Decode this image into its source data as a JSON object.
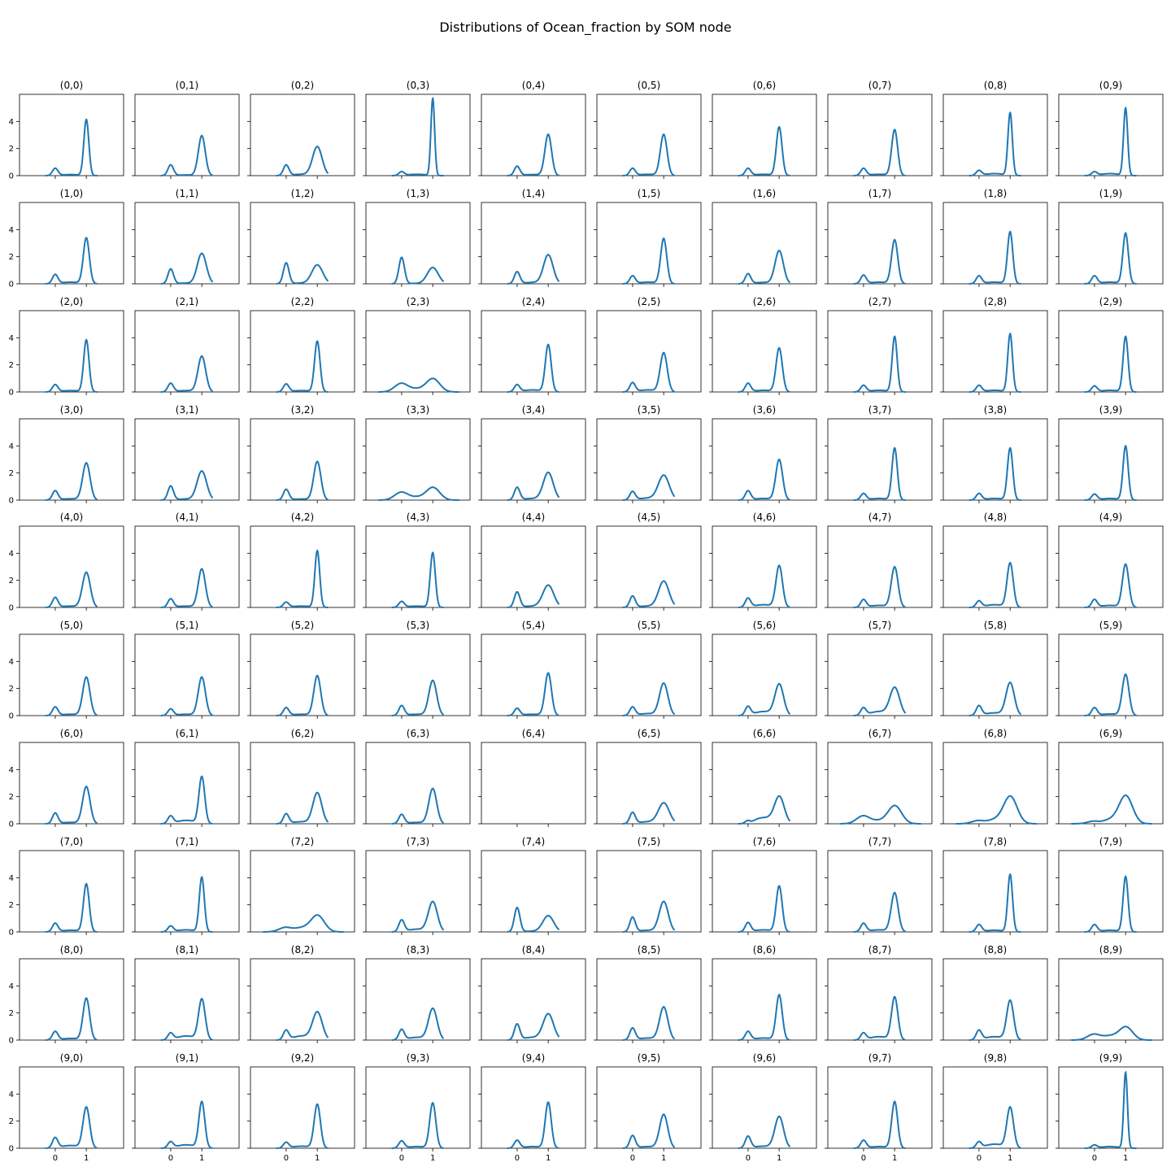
{
  "chart_data": {
    "type": "grid-of-kde-line-plots",
    "title": "Distributions of Ocean_fraction by SOM node",
    "xlabel": "",
    "ylabel": "",
    "grid_rows": 10,
    "grid_cols": 10,
    "shared_x_ticks": [
      0,
      1
    ],
    "shared_y_ticks": [
      0,
      2,
      4
    ],
    "xlim": [
      -1.15,
      2.2
    ],
    "ylim": [
      0,
      6.0
    ],
    "line_color": "#1f77b4",
    "grid": false,
    "panels": [
      {
        "label": "(0,0)",
        "peak0": 0.55,
        "peak1": 4.15,
        "hump": 0.08
      },
      {
        "label": "(0,1)",
        "peak0": 0.8,
        "peak1": 2.95,
        "hump": 0.05
      },
      {
        "label": "(0,2)",
        "peak0": 0.8,
        "peak1": 2.15,
        "hump": 0.1
      },
      {
        "label": "(0,3)",
        "peak0": 0.3,
        "peak1": 5.7,
        "hump": 0.1
      },
      {
        "label": "(0,4)",
        "peak0": 0.7,
        "peak1": 3.05,
        "hump": 0.08
      },
      {
        "label": "(0,5)",
        "peak0": 0.55,
        "peak1": 3.05,
        "hump": 0.1
      },
      {
        "label": "(0,6)",
        "peak0": 0.55,
        "peak1": 3.6,
        "hump": 0.1
      },
      {
        "label": "(0,7)",
        "peak0": 0.55,
        "peak1": 3.4,
        "hump": 0.1
      },
      {
        "label": "(0,8)",
        "peak0": 0.4,
        "peak1": 4.65,
        "hump": 0.15
      },
      {
        "label": "(0,9)",
        "peak0": 0.3,
        "peak1": 5.0,
        "hump": 0.15
      },
      {
        "label": "(1,0)",
        "peak0": 0.7,
        "peak1": 3.4,
        "hump": 0.12
      },
      {
        "label": "(1,1)",
        "peak0": 1.1,
        "peak1": 2.25,
        "hump": 0.05
      },
      {
        "label": "(1,2)",
        "peak0": 1.55,
        "peak1": 1.4,
        "hump": 0.05
      },
      {
        "label": "(1,3)",
        "peak0": 1.95,
        "peak1": 1.2,
        "hump": 0.03
      },
      {
        "label": "(1,4)",
        "peak0": 0.9,
        "peak1": 2.15,
        "hump": 0.1
      },
      {
        "label": "(1,5)",
        "peak0": 0.6,
        "peak1": 3.35,
        "hump": 0.12
      },
      {
        "label": "(1,6)",
        "peak0": 0.75,
        "peak1": 2.45,
        "hump": 0.1
      },
      {
        "label": "(1,7)",
        "peak0": 0.65,
        "peak1": 3.25,
        "hump": 0.12
      },
      {
        "label": "(1,8)",
        "peak0": 0.6,
        "peak1": 3.85,
        "hump": 0.12
      },
      {
        "label": "(1,9)",
        "peak0": 0.6,
        "peak1": 3.75,
        "hump": 0.12
      },
      {
        "label": "(2,0)",
        "peak0": 0.55,
        "peak1": 3.85,
        "hump": 0.1
      },
      {
        "label": "(2,1)",
        "peak0": 0.65,
        "peak1": 2.65,
        "hump": 0.1
      },
      {
        "label": "(2,2)",
        "peak0": 0.6,
        "peak1": 3.75,
        "hump": 0.1
      },
      {
        "label": "(2,3)",
        "peak0": 0.65,
        "peak1": 1.0,
        "hump": 0.2,
        "wide": true
      },
      {
        "label": "(2,4)",
        "peak0": 0.55,
        "peak1": 3.5,
        "hump": 0.15
      },
      {
        "label": "(2,5)",
        "peak0": 0.7,
        "peak1": 2.9,
        "hump": 0.15
      },
      {
        "label": "(2,6)",
        "peak0": 0.65,
        "peak1": 3.25,
        "hump": 0.12
      },
      {
        "label": "(2,7)",
        "peak0": 0.5,
        "peak1": 4.1,
        "hump": 0.12
      },
      {
        "label": "(2,8)",
        "peak0": 0.5,
        "peak1": 4.3,
        "hump": 0.12
      },
      {
        "label": "(2,9)",
        "peak0": 0.45,
        "peak1": 4.1,
        "hump": 0.12
      },
      {
        "label": "(3,0)",
        "peak0": 0.7,
        "peak1": 2.75,
        "hump": 0.1
      },
      {
        "label": "(3,1)",
        "peak0": 1.05,
        "peak1": 2.15,
        "hump": 0.08
      },
      {
        "label": "(3,2)",
        "peak0": 0.8,
        "peak1": 2.85,
        "hump": 0.08
      },
      {
        "label": "(3,3)",
        "peak0": 0.6,
        "peak1": 0.95,
        "hump": 0.2,
        "wide": true
      },
      {
        "label": "(3,4)",
        "peak0": 0.95,
        "peak1": 2.05,
        "hump": 0.12
      },
      {
        "label": "(3,5)",
        "peak0": 0.65,
        "peak1": 1.85,
        "hump": 0.15
      },
      {
        "label": "(3,6)",
        "peak0": 0.7,
        "peak1": 3.0,
        "hump": 0.12
      },
      {
        "label": "(3,7)",
        "peak0": 0.5,
        "peak1": 3.85,
        "hump": 0.12
      },
      {
        "label": "(3,8)",
        "peak0": 0.5,
        "peak1": 3.85,
        "hump": 0.12
      },
      {
        "label": "(3,9)",
        "peak0": 0.45,
        "peak1": 4.0,
        "hump": 0.12
      },
      {
        "label": "(4,0)",
        "peak0": 0.75,
        "peak1": 2.6,
        "hump": 0.1
      },
      {
        "label": "(4,1)",
        "peak0": 0.65,
        "peak1": 2.85,
        "hump": 0.1
      },
      {
        "label": "(4,2)",
        "peak0": 0.4,
        "peak1": 4.2,
        "hump": 0.1
      },
      {
        "label": "(4,3)",
        "peak0": 0.45,
        "peak1": 4.05,
        "hump": 0.1
      },
      {
        "label": "(4,4)",
        "peak0": 1.15,
        "peak1": 1.65,
        "hump": 0.1
      },
      {
        "label": "(4,5)",
        "peak0": 0.85,
        "peak1": 1.95,
        "hump": 0.1
      },
      {
        "label": "(4,6)",
        "peak0": 0.7,
        "peak1": 3.1,
        "hump": 0.2
      },
      {
        "label": "(4,7)",
        "peak0": 0.6,
        "peak1": 3.0,
        "hump": 0.15
      },
      {
        "label": "(4,8)",
        "peak0": 0.5,
        "peak1": 3.3,
        "hump": 0.2
      },
      {
        "label": "(4,9)",
        "peak0": 0.6,
        "peak1": 3.2,
        "hump": 0.15
      },
      {
        "label": "(5,0)",
        "peak0": 0.65,
        "peak1": 2.85,
        "hump": 0.1
      },
      {
        "label": "(5,1)",
        "peak0": 0.5,
        "peak1": 2.85,
        "hump": 0.1
      },
      {
        "label": "(5,2)",
        "peak0": 0.6,
        "peak1": 2.95,
        "hump": 0.1
      },
      {
        "label": "(5,3)",
        "peak0": 0.75,
        "peak1": 2.6,
        "hump": 0.1
      },
      {
        "label": "(5,4)",
        "peak0": 0.55,
        "peak1": 3.15,
        "hump": 0.1
      },
      {
        "label": "(5,5)",
        "peak0": 0.65,
        "peak1": 2.4,
        "hump": 0.15
      },
      {
        "label": "(5,6)",
        "peak0": 0.7,
        "peak1": 2.35,
        "hump": 0.3
      },
      {
        "label": "(5,7)",
        "peak0": 0.6,
        "peak1": 2.1,
        "hump": 0.3
      },
      {
        "label": "(5,8)",
        "peak0": 0.75,
        "peak1": 2.45,
        "hump": 0.2
      },
      {
        "label": "(5,9)",
        "peak0": 0.6,
        "peak1": 3.05,
        "hump": 0.12
      },
      {
        "label": "(6,0)",
        "peak0": 0.8,
        "peak1": 2.75,
        "hump": 0.1
      },
      {
        "label": "(6,1)",
        "peak0": 0.6,
        "peak1": 3.5,
        "hump": 0.25
      },
      {
        "label": "(6,2)",
        "peak0": 0.75,
        "peak1": 2.3,
        "hump": 0.15
      },
      {
        "label": "(6,3)",
        "peak0": 0.7,
        "peak1": 2.6,
        "hump": 0.1
      },
      {
        "label": "(6,4)",
        "empty": true
      },
      {
        "label": "(6,5)",
        "peak0": 0.85,
        "peak1": 1.55,
        "hump": 0.15
      },
      {
        "label": "(6,6)",
        "peak0": 0.25,
        "peak1": 2.05,
        "hump": 0.45
      },
      {
        "label": "(6,7)",
        "peak0": 0.6,
        "peak1": 1.35,
        "hump": 0.2,
        "wide": true
      },
      {
        "label": "(6,8)",
        "peak0": 0.25,
        "peak1": 2.05,
        "hump": 0.3,
        "wide": true
      },
      {
        "label": "(6,9)",
        "peak0": 0.2,
        "peak1": 2.1,
        "hump": 0.3,
        "wide": true
      },
      {
        "label": "(7,0)",
        "peak0": 0.65,
        "peak1": 3.55,
        "hump": 0.12
      },
      {
        "label": "(7,1)",
        "peak0": 0.45,
        "peak1": 4.05,
        "hump": 0.15
      },
      {
        "label": "(7,2)",
        "peak0": 0.35,
        "peak1": 1.25,
        "hump": 0.3,
        "wide": true
      },
      {
        "label": "(7,3)",
        "peak0": 0.9,
        "peak1": 2.25,
        "hump": 0.2
      },
      {
        "label": "(7,4)",
        "peak0": 1.8,
        "peak1": 1.2,
        "hump": 0.05
      },
      {
        "label": "(7,5)",
        "peak0": 1.1,
        "peak1": 2.25,
        "hump": 0.12
      },
      {
        "label": "(7,6)",
        "peak0": 0.7,
        "peak1": 3.4,
        "hump": 0.15
      },
      {
        "label": "(7,7)",
        "peak0": 0.65,
        "peak1": 2.9,
        "hump": 0.15
      },
      {
        "label": "(7,8)",
        "peak0": 0.55,
        "peak1": 4.25,
        "hump": 0.12
      },
      {
        "label": "(7,9)",
        "peak0": 0.55,
        "peak1": 4.1,
        "hump": 0.12
      },
      {
        "label": "(8,0)",
        "peak0": 0.65,
        "peak1": 3.1,
        "hump": 0.12
      },
      {
        "label": "(8,1)",
        "peak0": 0.55,
        "peak1": 3.05,
        "hump": 0.3
      },
      {
        "label": "(8,2)",
        "peak0": 0.75,
        "peak1": 2.1,
        "hump": 0.3
      },
      {
        "label": "(8,3)",
        "peak0": 0.8,
        "peak1": 2.35,
        "hump": 0.2
      },
      {
        "label": "(8,4)",
        "peak0": 1.2,
        "peak1": 1.95,
        "hump": 0.2
      },
      {
        "label": "(8,5)",
        "peak0": 0.9,
        "peak1": 2.45,
        "hump": 0.15
      },
      {
        "label": "(8,6)",
        "peak0": 0.65,
        "peak1": 3.35,
        "hump": 0.15
      },
      {
        "label": "(8,7)",
        "peak0": 0.55,
        "peak1": 3.2,
        "hump": 0.25
      },
      {
        "label": "(8,8)",
        "peak0": 0.75,
        "peak1": 2.95,
        "hump": 0.25
      },
      {
        "label": "(8,9)",
        "peak0": 0.45,
        "peak1": 1.0,
        "hump": 0.3,
        "wide": true
      },
      {
        "label": "(9,0)",
        "peak0": 0.8,
        "peak1": 3.05,
        "hump": 0.2
      },
      {
        "label": "(9,1)",
        "peak0": 0.5,
        "peak1": 3.45,
        "hump": 0.25
      },
      {
        "label": "(9,2)",
        "peak0": 0.45,
        "peak1": 3.25,
        "hump": 0.15
      },
      {
        "label": "(9,3)",
        "peak0": 0.55,
        "peak1": 3.35,
        "hump": 0.12
      },
      {
        "label": "(9,4)",
        "peak0": 0.6,
        "peak1": 3.4,
        "hump": 0.12
      },
      {
        "label": "(9,5)",
        "peak0": 0.95,
        "peak1": 2.5,
        "hump": 0.12
      },
      {
        "label": "(9,6)",
        "peak0": 0.9,
        "peak1": 2.35,
        "hump": 0.15
      },
      {
        "label": "(9,7)",
        "peak0": 0.6,
        "peak1": 3.45,
        "hump": 0.12
      },
      {
        "label": "(9,8)",
        "peak0": 0.5,
        "peak1": 3.05,
        "hump": 0.3
      },
      {
        "label": "(9,9)",
        "peak0": 0.25,
        "peak1": 5.6,
        "hump": 0.12
      }
    ]
  }
}
